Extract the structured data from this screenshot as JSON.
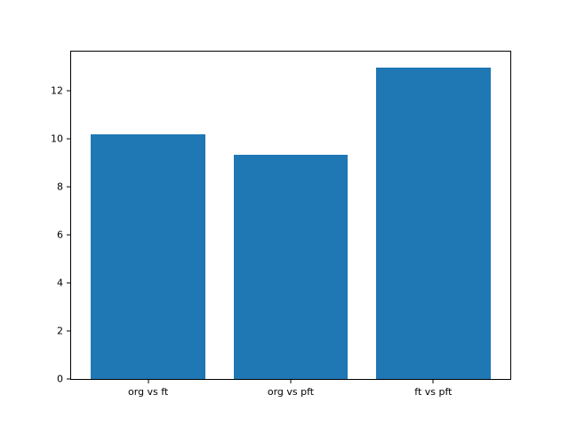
{
  "chart_data": {
    "type": "bar",
    "categories": [
      "org vs ft",
      "org vs pft",
      "ft vs pft"
    ],
    "values": [
      10.2,
      9.35,
      13.0
    ],
    "title": "",
    "xlabel": "",
    "ylabel": "",
    "ylim": [
      0,
      13.65
    ],
    "yticks": [
      0,
      2,
      4,
      6,
      8,
      10,
      12
    ],
    "bar_color": "#1f77b4",
    "background_color": "#ffffff",
    "spine_color": "#000000",
    "grid": "off",
    "legend": "none"
  }
}
